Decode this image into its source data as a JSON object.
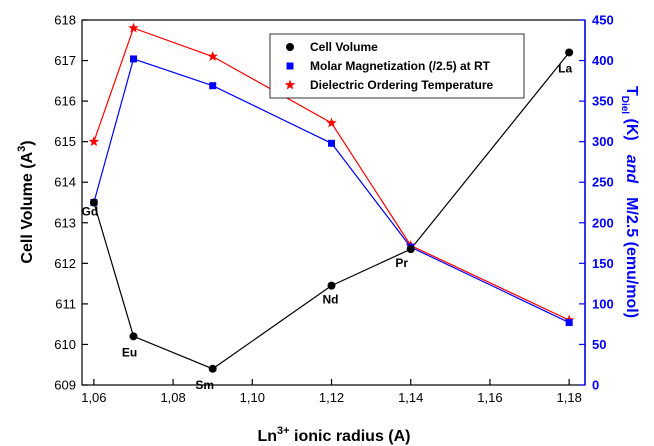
{
  "chart_data": {
    "type": "line",
    "x_ticks": [
      "1,06",
      "1,08",
      "1,10",
      "1,12",
      "1,14",
      "1,16",
      "1,18"
    ],
    "xlim": [
      1.057,
      1.184
    ],
    "xlabel_main": "Ln",
    "xlabel_sup": "3+",
    "xlabel_rest": " ionic radius (A)",
    "ylabel_main": "Cell Volume (A",
    "ylabel_sup": "3",
    "ylabel_end": ")",
    "ylim": [
      609,
      618
    ],
    "y_ticks": [
      "609",
      "610",
      "611",
      "612",
      "613",
      "614",
      "615",
      "616",
      "617",
      "618"
    ],
    "y2_label_main": "T",
    "y2_label_sub": "Diel",
    "y2_label_rest": " (K)",
    "y2_label_and": "and",
    "y2_label_tail": "M/2.5 (emu/mol)",
    "y2lim": [
      0,
      450
    ],
    "y2_ticks": [
      "0",
      "50",
      "100",
      "150",
      "200",
      "250",
      "300",
      "350",
      "400",
      "450"
    ],
    "colors": {
      "cell_volume": "#000000",
      "magnetization": "#0000ff",
      "dielectric": "#ff0000",
      "right_axis": "#0000ff"
    },
    "series": [
      {
        "name": "Cell Volume",
        "axis": "left",
        "marker": "circle",
        "x": [
          1.06,
          1.07,
          1.09,
          1.12,
          1.14,
          1.18
        ],
        "y": [
          613.5,
          610.2,
          609.4,
          611.45,
          612.35,
          617.2
        ],
        "labels": [
          "Gd",
          "Eu",
          "Sm",
          "Nd",
          "Pr",
          "La"
        ]
      },
      {
        "name": "Molar Magnetization (/2.5) at RT",
        "axis": "right",
        "marker": "square",
        "x": [
          1.06,
          1.07,
          1.09,
          1.12,
          1.14,
          1.18
        ],
        "y": [
          225,
          402,
          369,
          298,
          170,
          77
        ]
      },
      {
        "name": "Dielectric Ordering Temperature",
        "axis": "right",
        "marker": "star",
        "x": [
          1.06,
          1.07,
          1.09,
          1.12,
          1.14,
          1.18
        ],
        "y": [
          300,
          440,
          405,
          323,
          172,
          80
        ]
      }
    ],
    "legend_position": "top-right"
  }
}
